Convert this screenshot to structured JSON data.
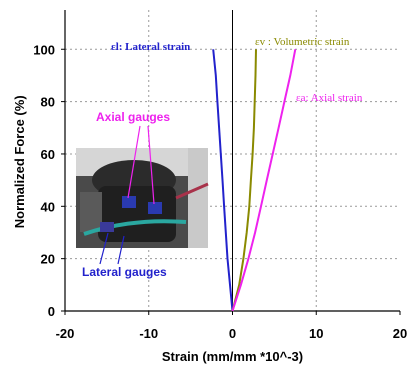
{
  "chart_data": {
    "type": "line",
    "xlabel": "Strain (mm/mm *10^-3)",
    "ylabel": "Normalized Force (%)",
    "xlim": [
      -20,
      20
    ],
    "ylim": [
      0,
      115
    ],
    "x_ticks": [
      "-20",
      "-10",
      "0",
      "10",
      "20"
    ],
    "y_ticks": [
      "0",
      "20",
      "40",
      "60",
      "80",
      "100"
    ],
    "grid": true,
    "series": [
      {
        "name": "εl: Lateral strain",
        "color": "#2222cc",
        "points": [
          [
            0,
            0
          ],
          [
            -0.3,
            10
          ],
          [
            -0.6,
            20
          ],
          [
            -0.8,
            30
          ],
          [
            -1.0,
            40
          ],
          [
            -1.2,
            50
          ],
          [
            -1.4,
            60
          ],
          [
            -1.6,
            70
          ],
          [
            -1.8,
            80
          ],
          [
            -2.0,
            90
          ],
          [
            -2.3,
            100
          ]
        ]
      },
      {
        "name": "εv : Volumetric strain",
        "color": "#8a8a00",
        "points": [
          [
            0,
            0
          ],
          [
            0.8,
            10
          ],
          [
            1.3,
            20
          ],
          [
            1.7,
            30
          ],
          [
            2.0,
            40
          ],
          [
            2.2,
            50
          ],
          [
            2.4,
            60
          ],
          [
            2.55,
            70
          ],
          [
            2.65,
            80
          ],
          [
            2.75,
            90
          ],
          [
            2.8,
            100
          ]
        ]
      },
      {
        "name": "εa: Axial strain",
        "color": "#ee22ee",
        "points": [
          [
            0,
            0
          ],
          [
            1.0,
            10
          ],
          [
            1.9,
            20
          ],
          [
            2.7,
            30
          ],
          [
            3.4,
            40
          ],
          [
            4.1,
            50
          ],
          [
            4.8,
            60
          ],
          [
            5.5,
            70
          ],
          [
            6.2,
            80
          ],
          [
            6.9,
            90
          ],
          [
            7.5,
            100
          ]
        ]
      }
    ],
    "annotations": {
      "axial_gauges": "Axial gauges",
      "lateral_gauges": "Lateral gauges"
    }
  },
  "colors": {
    "lateral": "#2222cc",
    "volumetric": "#8a8a00",
    "axial": "#ee22ee",
    "axial_gauges_label": "#ee22ee",
    "lateral_gauges_label": "#2222cc"
  }
}
